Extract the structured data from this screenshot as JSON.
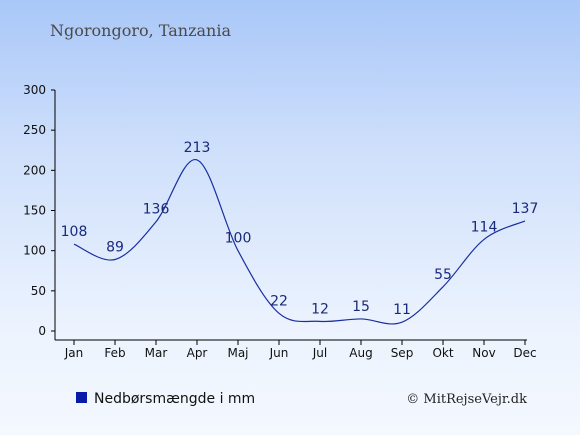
{
  "chart_data": {
    "type": "line",
    "title": "Ngorongoro, Tanzania",
    "categories": [
      "Jan",
      "Feb",
      "Mar",
      "Apr",
      "Maj",
      "Jun",
      "Jul",
      "Aug",
      "Sep",
      "Okt",
      "Nov",
      "Dec"
    ],
    "series": [
      {
        "name": "Nedbørsmængde i mm",
        "values": [
          108,
          89,
          136,
          213,
          100,
          22,
          12,
          15,
          11,
          55,
          114,
          137
        ]
      }
    ],
    "ylim": [
      0,
      300
    ],
    "yticks": [
      0,
      50,
      100,
      150,
      200,
      250,
      300
    ],
    "grid": false,
    "legend": "bottom-left",
    "line_color": "#1a2fa0",
    "legend_marker_color": "#0a1aa8"
  },
  "credit": "© MitRejseVejr.dk"
}
